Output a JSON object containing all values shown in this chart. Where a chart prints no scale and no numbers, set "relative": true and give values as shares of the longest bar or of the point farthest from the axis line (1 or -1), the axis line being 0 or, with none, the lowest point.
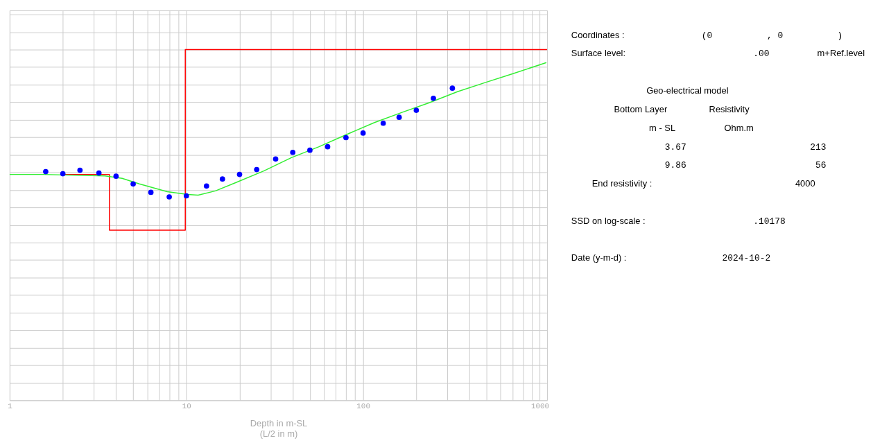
{
  "chart_data": [
    {
      "type": "line",
      "xlabel": "Depth in m-SL\n(L/2 in m)",
      "log": "x",
      "grid": true,
      "tick_labels": "x",
      "xlim": [
        1,
        1100
      ],
      "relative": true,
      "xticks": [
        1,
        {
          "value": 2,
          "label": null
        },
        {
          "value": 3,
          "label": null
        },
        {
          "value": 4,
          "label": null
        },
        {
          "value": 5,
          "label": null
        },
        {
          "value": 6,
          "label": null
        },
        {
          "value": 7,
          "label": null
        },
        {
          "value": 8,
          "label": null
        },
        {
          "value": 9,
          "label": null
        },
        10,
        {
          "value": 20,
          "label": null
        },
        {
          "value": 30,
          "label": null
        },
        {
          "value": 40,
          "label": null
        },
        {
          "value": 50,
          "label": null
        },
        {
          "value": 60,
          "label": null
        },
        {
          "value": 70,
          "label": null
        },
        {
          "value": 80,
          "label": null
        },
        {
          "value": 90,
          "label": null
        },
        100,
        {
          "value": 200,
          "label": null
        },
        {
          "value": 300,
          "label": null
        },
        {
          "value": 400,
          "label": null
        },
        {
          "value": 500,
          "label": null
        },
        {
          "value": 600,
          "label": null
        },
        {
          "value": 700,
          "label": null
        },
        {
          "value": 800,
          "label": null
        },
        {
          "value": 900,
          "label": null
        },
        1000
      ],
      "series": [
        {
          "type": "step",
          "color": "#ff0000",
          "x": [
            2,
            3.67,
            9.86,
            1100
          ],
          "values": [
            0.644,
            0.485,
            1,
            1
          ]
        },
        {
          "type": "line",
          "color": "#33ee33",
          "x": [
            1,
            1.54,
            3.46,
            4.33,
            5.42,
            7.79,
            10.2,
            11.65,
            14.6,
            19.1,
            27.4,
            39.3,
            56.3,
            80.7,
            116,
            166,
            238,
            342,
            490,
            700,
            1090
          ],
          "values": [
            0.644,
            0.644,
            0.64,
            0.633,
            0.617,
            0.595,
            0.587,
            0.585,
            0.597,
            0.621,
            0.654,
            0.692,
            0.723,
            0.758,
            0.792,
            0.821,
            0.849,
            0.88,
            0.906,
            0.931,
            0.963
          ]
        },
        {
          "type": "scatter",
          "marker": "circle",
          "color": "#0000ff",
          "x": [
            1.6,
            2,
            2.5,
            3.2,
            4,
            5,
            6.3,
            8,
            10,
            13,
            16,
            20,
            25,
            32,
            40,
            50,
            63,
            80,
            100,
            130,
            160,
            200,
            250,
            320
          ],
          "values": [
            0.652,
            0.646,
            0.656,
            0.648,
            0.639,
            0.617,
            0.593,
            0.58,
            0.583,
            0.611,
            0.631,
            0.644,
            0.658,
            0.688,
            0.707,
            0.713,
            0.723,
            0.749,
            0.762,
            0.79,
            0.807,
            0.827,
            0.861,
            0.89
          ]
        }
      ]
    },
    {
      "type": "other",
      "annotations": [
        "Coordinates :",
        "(0",
        ", 0",
        ")",
        "Surface level:",
        ".00",
        "m+Ref.level",
        "Geo-electrical model",
        "Bottom Layer",
        "Resistivity",
        "m - SL",
        "Ohm.m",
        "3.67",
        "213",
        "9.86",
        "56",
        "End resistivity :",
        "4000",
        "SSD on log-scale :",
        ".10178",
        "Date (y-m-d) :",
        "2024-10-2"
      ]
    }
  ]
}
